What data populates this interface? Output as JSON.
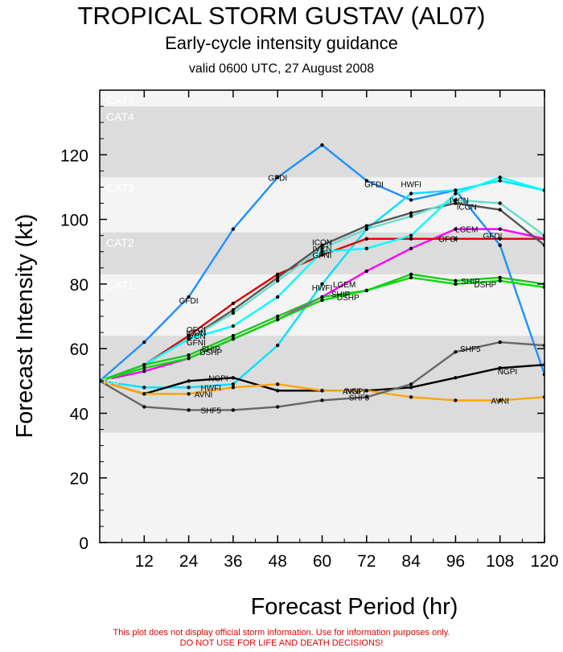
{
  "header": {
    "title": "TROPICAL STORM GUSTAV (AL07)",
    "subtitle": "Early-cycle intensity guidance",
    "valid": "valid 0600 UTC, 27 August 2008"
  },
  "footer": {
    "line1": "This plot does not display official storm information. Use for information purposes only.",
    "line2": "DO NOT USE FOR LIFE AND DEATH DECISIONS!"
  },
  "colors": {
    "band_dark": "#dcdcdc",
    "band_light": "#f4f4f4",
    "band_text": "#ffffff",
    "footer_text": "#e00000"
  },
  "chart_data": {
    "type": "line",
    "xlabel": "Forecast Period (hr)",
    "ylabel": "Forecast Intensity (kt)",
    "xlim": [
      0,
      120
    ],
    "ylim": [
      0,
      140
    ],
    "xticks": [
      12,
      24,
      36,
      48,
      60,
      72,
      84,
      96,
      108,
      120
    ],
    "yticks": [
      0,
      20,
      40,
      60,
      80,
      100,
      120
    ],
    "initial_label": "TCO",
    "categories": [
      {
        "name": "",
        "ymin": 34,
        "ymax": 64
      },
      {
        "name": "CAT1",
        "ymin": 64,
        "ymax": 83
      },
      {
        "name": "CAT2",
        "ymin": 83,
        "ymax": 96
      },
      {
        "name": "CAT3",
        "ymin": 96,
        "ymax": 113
      },
      {
        "name": "CAT4",
        "ymin": 113,
        "ymax": 135
      },
      {
        "name": "CAT5",
        "ymin": 135,
        "ymax": 140
      }
    ],
    "series": [
      {
        "name": "GFDI",
        "color": "#1e90ff",
        "x": [
          0,
          12,
          24,
          36,
          48,
          60,
          72,
          84,
          96,
          108,
          120
        ],
        "y": [
          50,
          62,
          76,
          97,
          113,
          123,
          112,
          106,
          109,
          92,
          52
        ],
        "labels": [
          {
            "x": 24,
            "y": 75
          },
          {
            "x": 48,
            "y": 113
          },
          {
            "x": 74,
            "y": 111
          },
          {
            "x": 106,
            "y": 95
          }
        ]
      },
      {
        "name": "HWFI",
        "color": "#00e0ff",
        "x": [
          0,
          12,
          24,
          36,
          48,
          60,
          72,
          84,
          96,
          108,
          120
        ],
        "y": [
          50,
          48,
          48,
          49,
          61,
          80,
          97,
          108,
          109,
          112,
          109
        ],
        "labels": [
          {
            "x": 30,
            "y": 48
          },
          {
            "x": 60,
            "y": 79
          },
          {
            "x": 84,
            "y": 111
          }
        ]
      },
      {
        "name": "LGEM",
        "color": "#ff00ff",
        "x": [
          0,
          12,
          24,
          36,
          48,
          60,
          72,
          84,
          96,
          108,
          120
        ],
        "y": [
          50,
          53,
          57,
          63,
          69,
          76,
          84,
          91,
          97,
          97,
          94
        ],
        "labels": [
          {
            "x": 66,
            "y": 80
          },
          {
            "x": 99,
            "y": 97
          }
        ]
      },
      {
        "name": "OFCI",
        "color": "#e00000",
        "x": [
          0,
          12,
          24,
          36,
          48,
          60,
          72,
          84,
          96,
          108,
          120
        ],
        "y": [
          50,
          55,
          64,
          74,
          83,
          89,
          94,
          94,
          94,
          94,
          94
        ],
        "labels": [
          {
            "x": 26,
            "y": 66
          },
          {
            "x": 94,
            "y": 94
          }
        ]
      },
      {
        "name": "ICON",
        "color": "#555555",
        "x": [
          0,
          12,
          24,
          36,
          48,
          60,
          72,
          84,
          96,
          108,
          120
        ],
        "y": [
          50,
          55,
          63,
          72,
          82,
          92,
          98,
          102,
          105,
          103,
          92
        ],
        "labels": [
          {
            "x": 26,
            "y": 65
          },
          {
            "x": 60,
            "y": 93
          },
          {
            "x": 99,
            "y": 104
          }
        ]
      },
      {
        "name": "IVCN",
        "color": "#66ddcc",
        "x": [
          0,
          12,
          24,
          36,
          48,
          60,
          72,
          84,
          96,
          108,
          120
        ],
        "y": [
          50,
          55,
          63,
          71,
          81,
          91,
          97,
          101,
          106,
          105,
          95
        ],
        "labels": [
          {
            "x": 26,
            "y": 64
          },
          {
            "x": 60,
            "y": 91
          },
          {
            "x": 97,
            "y": 106
          }
        ]
      },
      {
        "name": "GFNI",
        "color": "#00ffff",
        "x": [
          0,
          12,
          24,
          36,
          48,
          60,
          72,
          84,
          96,
          108,
          120
        ],
        "y": [
          50,
          55,
          63,
          67,
          76,
          90,
          91,
          95,
          108,
          113,
          109
        ],
        "labels": [
          {
            "x": 26,
            "y": 62
          },
          {
            "x": 60,
            "y": 89
          }
        ]
      },
      {
        "name": "SHIP",
        "color": "#22c522",
        "x": [
          0,
          12,
          24,
          36,
          48,
          60,
          72,
          84,
          96,
          108,
          120
        ],
        "y": [
          50,
          55,
          58,
          64,
          70,
          76,
          78,
          83,
          81,
          82,
          80
        ],
        "labels": [
          {
            "x": 30,
            "y": 60
          },
          {
            "x": 65,
            "y": 77
          },
          {
            "x": 100,
            "y": 81
          }
        ]
      },
      {
        "name": "DSHP",
        "color": "#00dd00",
        "x": [
          0,
          12,
          24,
          36,
          48,
          60,
          72,
          84,
          96,
          108,
          120
        ],
        "y": [
          50,
          54,
          57,
          63,
          69,
          75,
          78,
          82,
          80,
          81,
          79
        ],
        "labels": [
          {
            "x": 30,
            "y": 59
          },
          {
            "x": 67,
            "y": 76
          },
          {
            "x": 104,
            "y": 80
          }
        ]
      },
      {
        "name": "NGPI",
        "color": "#000000",
        "x": [
          0,
          12,
          24,
          36,
          48,
          60,
          72,
          84,
          96,
          108,
          120
        ],
        "y": [
          50,
          46,
          50,
          51,
          47,
          47,
          47,
          48,
          51,
          54,
          55
        ],
        "labels": [
          {
            "x": 32,
            "y": 51
          },
          {
            "x": 69,
            "y": 47
          },
          {
            "x": 110,
            "y": 53
          }
        ]
      },
      {
        "name": "AVNI",
        "color": "#ffa500",
        "x": [
          0,
          12,
          24,
          36,
          48,
          60,
          72,
          84,
          96,
          108,
          120
        ],
        "y": [
          50,
          46,
          46,
          48,
          49,
          47,
          47,
          45,
          44,
          44,
          45
        ],
        "labels": [
          {
            "x": 28,
            "y": 46
          },
          {
            "x": 68,
            "y": 47
          },
          {
            "x": 108,
            "y": 44
          }
        ]
      },
      {
        "name": "SHF5",
        "color": "#666666",
        "x": [
          0,
          12,
          24,
          36,
          48,
          60,
          72,
          84,
          96,
          108,
          120
        ],
        "y": [
          50,
          42,
          41,
          41,
          42,
          44,
          45,
          49,
          59,
          62,
          61
        ],
        "labels": [
          {
            "x": 30,
            "y": 41
          },
          {
            "x": 70,
            "y": 45
          },
          {
            "x": 100,
            "y": 60
          }
        ]
      }
    ]
  }
}
